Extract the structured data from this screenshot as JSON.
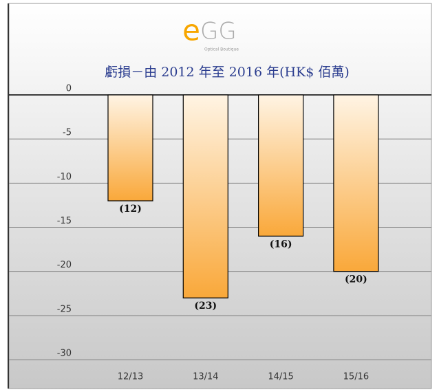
{
  "logo": {
    "mark": "e",
    "text": "GG",
    "tagline": "Optical Boutique"
  },
  "chart_data": {
    "type": "bar",
    "title": "虧損－由 2012 年至 2016 年(HK$ 佰萬)",
    "categories": [
      "12/13",
      "13/14",
      "14/15",
      "15/16"
    ],
    "values": [
      -12,
      -23,
      -16,
      -20
    ],
    "value_labels": [
      "(12)",
      "(23)",
      "(16)",
      "(20)"
    ],
    "color": "#f9a83a",
    "ylim": [
      -30,
      0
    ],
    "yticks": [
      0,
      -5,
      -10,
      -15,
      -20,
      -25,
      -30
    ],
    "grid": true
  }
}
